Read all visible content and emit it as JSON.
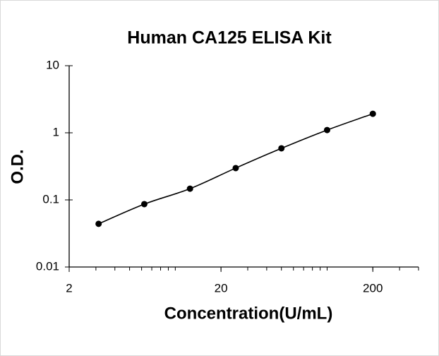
{
  "chart_data": {
    "type": "line",
    "title": "Human CA125 ELISA Kit",
    "x_label": "Concentration(U/mL)",
    "y_label": "O.D.",
    "x": [
      3.125,
      6.25,
      12.5,
      25,
      50,
      100,
      200
    ],
    "series": [
      {
        "color": "#000000",
        "values": [
          0.044,
          0.0865,
          0.147,
          0.298,
          0.587,
          1.1,
          1.92
        ]
      }
    ],
    "xlim": [
      2,
      400
    ],
    "ylim": [
      0.01,
      10
    ],
    "xticks": [
      2,
      20,
      200
    ],
    "yticks": [
      0.01,
      0.1,
      1,
      10
    ],
    "xscale": "log",
    "yscale": "log",
    "x_minor_ticks": true,
    "markers": true,
    "grid": false
  }
}
